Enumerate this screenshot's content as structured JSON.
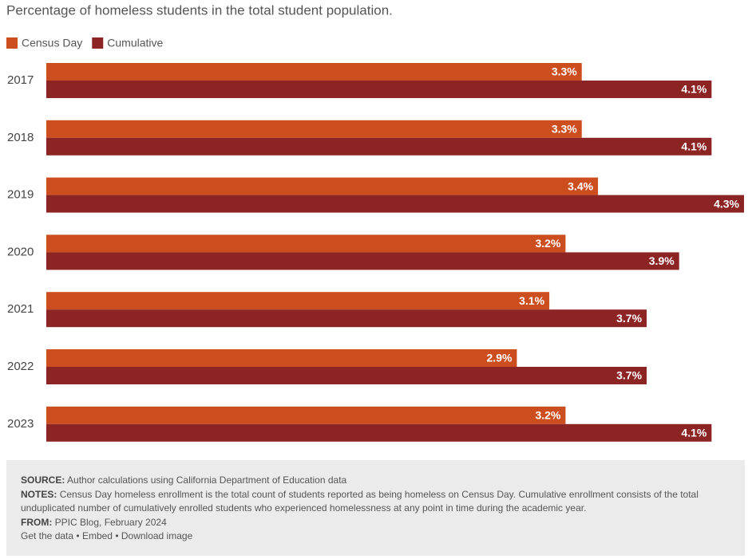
{
  "chart_data": {
    "type": "hbar",
    "title": "Percentage of homeless students in the total student population.",
    "categories": [
      "2017",
      "2018",
      "2019",
      "2020",
      "2021",
      "2022",
      "2023"
    ],
    "series": [
      {
        "name": "Census Day",
        "color": "#cc4e1e",
        "values": [
          3.3,
          3.3,
          3.4,
          3.2,
          3.1,
          2.9,
          3.2
        ],
        "value_labels": [
          "3.3%",
          "3.3%",
          "3.4%",
          "3.2%",
          "3.1%",
          "2.9%",
          "3.2%"
        ]
      },
      {
        "name": "Cumulative",
        "color": "#8b2423",
        "values": [
          4.1,
          4.1,
          4.3,
          3.9,
          3.7,
          3.7,
          4.1
        ],
        "value_labels": [
          "4.1%",
          "4.1%",
          "4.3%",
          "3.9%",
          "3.7%",
          "3.7%",
          "4.1%"
        ]
      }
    ]
  },
  "footer": {
    "source": {
      "label": "SOURCE:",
      "text": "Author calculations using California Department of Education data"
    },
    "notes": {
      "label": "NOTES:",
      "text": "Census Day homeless enrollment is the total count of students reported as being homeless on Census Day. Cumulative enrollment consists of the total unduplicated number of cumulatively enrolled students who experienced homelessness at any point in time during the academic year."
    },
    "from": {
      "label": "FROM:",
      "text": "PPIC Blog, February 2024"
    },
    "links": [
      "Get the data",
      "Embed",
      "Download image"
    ],
    "separator": "•"
  }
}
